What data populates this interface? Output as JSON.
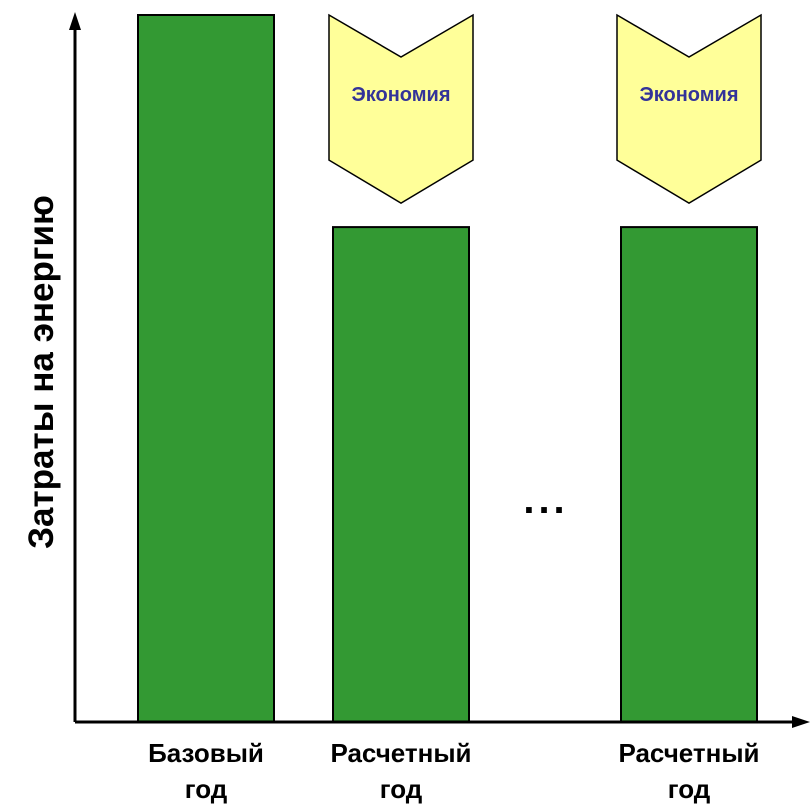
{
  "chart_data": {
    "type": "bar",
    "title": "",
    "ylabel": "Затраты на энергию",
    "xlabel": "",
    "categories": [
      {
        "line1": "Базовый",
        "line2": "год"
      },
      {
        "line1": "Расчетный",
        "line2": "год"
      },
      {
        "line1": "Расчетный",
        "line2": "год"
      }
    ],
    "values": [
      1.0,
      0.7,
      0.7
    ],
    "ylim": [
      0,
      1.0
    ],
    "gap_marker": "...",
    "savings": [
      {
        "category_index": 1,
        "label": "Экономия"
      },
      {
        "category_index": 2,
        "label": "Экономия"
      }
    ],
    "grid": false,
    "colors": {
      "bar": "#339933",
      "savings": "#FFFF99",
      "savings_text": "#333399",
      "axis": "#000000"
    }
  }
}
